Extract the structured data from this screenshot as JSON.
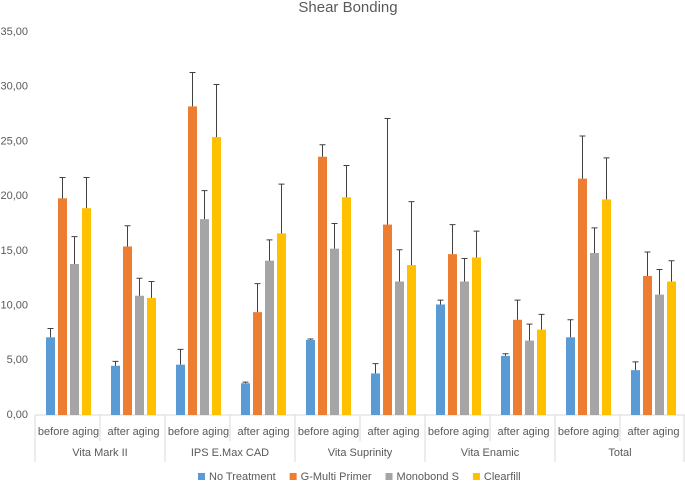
{
  "chart_data": {
    "type": "bar",
    "title": "Shear Bonding",
    "groups": [
      {
        "name": "Vita Mark II",
        "categories": [
          "before aging",
          "after aging"
        ]
      },
      {
        "name": "IPS E.Max CAD",
        "categories": [
          "before aging",
          "after aging"
        ]
      },
      {
        "name": "Vita Suprinity",
        "categories": [
          "before aging",
          "after aging"
        ]
      },
      {
        "name": "Vita Enamic",
        "categories": [
          "before aging",
          "after aging"
        ]
      },
      {
        "name": "Total",
        "categories": [
          "before aging",
          "after aging"
        ]
      }
    ],
    "series": [
      {
        "name": "No Treatment",
        "color": "#5b9bd5",
        "values": [
          7.1,
          4.5,
          4.6,
          2.9,
          6.85,
          3.8,
          10.1,
          5.4,
          7.1,
          4.1
        ],
        "errors": [
          0.8,
          0.4,
          1.4,
          0.1,
          0.1,
          0.9,
          0.4,
          0.2,
          1.6,
          0.75
        ]
      },
      {
        "name": "G-Multi Primer",
        "color": "#ed7d31",
        "values": [
          19.8,
          15.4,
          28.2,
          9.4,
          23.6,
          17.4,
          14.7,
          8.7,
          21.6,
          12.7
        ],
        "errors": [
          1.9,
          1.9,
          3.1,
          2.6,
          1.1,
          9.7,
          2.7,
          1.8,
          3.9,
          2.2
        ]
      },
      {
        "name": "Monobond S",
        "color": "#a5a5a5",
        "values": [
          13.8,
          10.9,
          17.9,
          14.1,
          15.2,
          12.2,
          12.2,
          6.8,
          14.8,
          11.0
        ],
        "errors": [
          2.5,
          1.6,
          2.6,
          1.9,
          2.3,
          2.9,
          2.1,
          1.5,
          2.3,
          2.3
        ]
      },
      {
        "name": "Clearfill",
        "color": "#ffc000",
        "values": [
          18.9,
          10.7,
          25.4,
          16.6,
          19.9,
          13.7,
          14.4,
          7.8,
          19.7,
          12.2
        ],
        "errors": [
          2.8,
          1.5,
          4.8,
          4.5,
          2.9,
          5.8,
          2.4,
          1.4,
          3.8,
          1.9
        ]
      }
    ],
    "ylim": [
      0,
      35
    ],
    "yticks": [
      {
        "value": 0,
        "label": "0,00"
      },
      {
        "value": 5,
        "label": "5,00"
      },
      {
        "value": 10,
        "label": "10,00"
      },
      {
        "value": 15,
        "label": "15,00"
      },
      {
        "value": 20,
        "label": "20,00"
      },
      {
        "value": 25,
        "label": "25,00"
      },
      {
        "value": 30,
        "label": "30,00"
      },
      {
        "value": 35,
        "label": "35,00"
      }
    ],
    "grid": false,
    "legend": "bottom"
  }
}
